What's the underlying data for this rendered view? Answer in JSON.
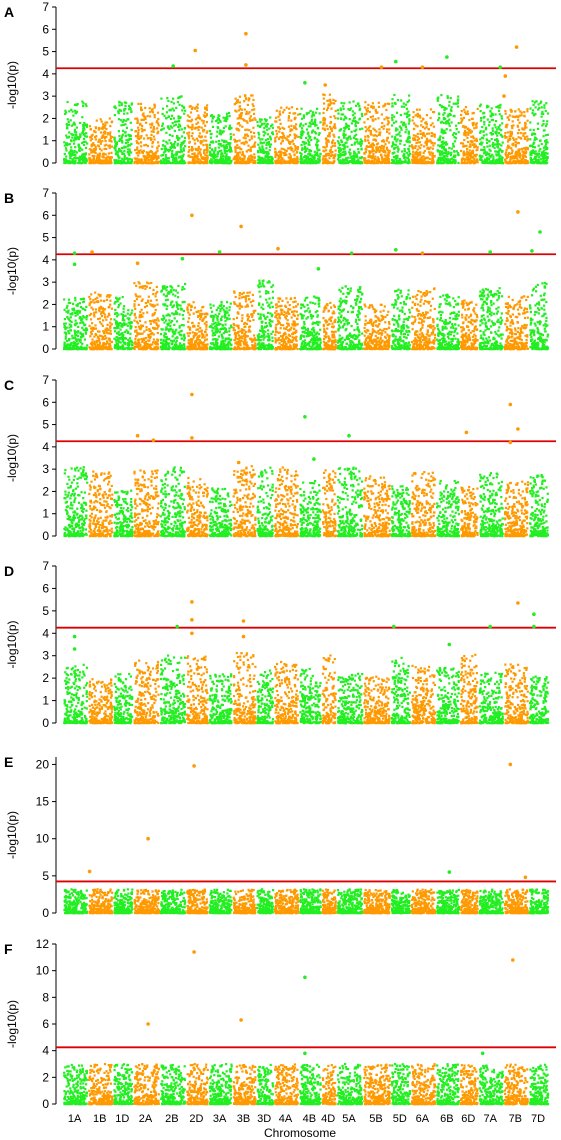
{
  "chart_data": {
    "type": "scatter",
    "subtype": "manhattan",
    "xlabel": "Chromosome",
    "chromosomes": [
      "1A",
      "1B",
      "1D",
      "2A",
      "2B",
      "2D",
      "3A",
      "3B",
      "3D",
      "4A",
      "4B",
      "4D",
      "5A",
      "5B",
      "5D",
      "6A",
      "6B",
      "6D",
      "7A",
      "7B",
      "7D"
    ],
    "colors": {
      "odd": "#22ee22",
      "even": "#ff9900",
      "threshold": "#dd0000"
    },
    "threshold": 4.25,
    "grid": false,
    "panels": [
      {
        "label": "A",
        "ylabel": "-log10(p)",
        "ylim": [
          0,
          7
        ],
        "yticks": [
          0,
          1,
          2,
          3,
          4,
          5,
          6,
          7
        ],
        "series": [
          {
            "values": []
          }
        ],
        "peaks": [
          {
            "chr": "2B",
            "pos": 0.55,
            "y": 4.35
          },
          {
            "chr": "2D",
            "pos": 0.45,
            "y": 5.05
          },
          {
            "chr": "3B",
            "pos": 0.6,
            "y": 5.8
          },
          {
            "chr": "3B",
            "pos": 0.6,
            "y": 4.4
          },
          {
            "chr": "4B",
            "pos": 0.3,
            "y": 3.6
          },
          {
            "chr": "4D",
            "pos": 0.3,
            "y": 3.5
          },
          {
            "chr": "5B",
            "pos": 0.7,
            "y": 4.3
          },
          {
            "chr": "5D",
            "pos": 0.3,
            "y": 4.55
          },
          {
            "chr": "6A",
            "pos": 0.5,
            "y": 4.3
          },
          {
            "chr": "6B",
            "pos": 0.5,
            "y": 4.75
          },
          {
            "chr": "7B",
            "pos": 0.55,
            "y": 5.2
          },
          {
            "chr": "7A",
            "pos": 0.9,
            "y": 4.3
          },
          {
            "chr": "7B",
            "pos": 0.1,
            "y": 3.9
          },
          {
            "chr": "7B",
            "pos": 0.05,
            "y": 3.0
          }
        ]
      },
      {
        "label": "B",
        "ylabel": "-log10(p)",
        "ylim": [
          0,
          7
        ],
        "yticks": [
          0,
          1,
          2,
          3,
          4,
          5,
          6,
          7
        ],
        "series": [
          {
            "values": []
          }
        ],
        "peaks": [
          {
            "chr": "1A",
            "pos": 0.5,
            "y": 4.3
          },
          {
            "chr": "1A",
            "pos": 0.5,
            "y": 3.8
          },
          {
            "chr": "1B",
            "pos": 0.2,
            "y": 4.35
          },
          {
            "chr": "2A",
            "pos": 0.2,
            "y": 3.85
          },
          {
            "chr": "2B",
            "pos": 0.9,
            "y": 4.05
          },
          {
            "chr": "2D",
            "pos": 0.3,
            "y": 6.0
          },
          {
            "chr": "3A",
            "pos": 0.5,
            "y": 4.35
          },
          {
            "chr": "3B",
            "pos": 0.4,
            "y": 5.5
          },
          {
            "chr": "4A",
            "pos": 0.2,
            "y": 4.5
          },
          {
            "chr": "4B",
            "pos": 0.9,
            "y": 3.6
          },
          {
            "chr": "5A",
            "pos": 0.6,
            "y": 4.3
          },
          {
            "chr": "5D",
            "pos": 0.3,
            "y": 4.45
          },
          {
            "chr": "6A",
            "pos": 0.5,
            "y": 4.3
          },
          {
            "chr": "7A",
            "pos": 0.5,
            "y": 4.35
          },
          {
            "chr": "7B",
            "pos": 0.6,
            "y": 6.15
          },
          {
            "chr": "7D",
            "pos": 0.2,
            "y": 4.4
          },
          {
            "chr": "7D",
            "pos": 0.6,
            "y": 5.25
          }
        ]
      },
      {
        "label": "C",
        "ylabel": "-log10(p)",
        "ylim": [
          0,
          7
        ],
        "yticks": [
          0,
          1,
          2,
          3,
          4,
          5,
          6,
          7
        ],
        "series": [
          {
            "values": []
          }
        ],
        "peaks": [
          {
            "chr": "2A",
            "pos": 0.2,
            "y": 4.5
          },
          {
            "chr": "2A",
            "pos": 0.8,
            "y": 4.3
          },
          {
            "chr": "2D",
            "pos": 0.3,
            "y": 6.35
          },
          {
            "chr": "2D",
            "pos": 0.3,
            "y": 4.4
          },
          {
            "chr": "4B",
            "pos": 0.3,
            "y": 5.35
          },
          {
            "chr": "4B",
            "pos": 0.7,
            "y": 3.45
          },
          {
            "chr": "5A",
            "pos": 0.5,
            "y": 4.5
          },
          {
            "chr": "6D",
            "pos": 0.4,
            "y": 4.65
          },
          {
            "chr": "7B",
            "pos": 0.3,
            "y": 5.9
          },
          {
            "chr": "7B",
            "pos": 0.6,
            "y": 4.8
          },
          {
            "chr": "7B",
            "pos": 0.3,
            "y": 4.2
          },
          {
            "chr": "3B",
            "pos": 0.3,
            "y": 3.3
          }
        ]
      },
      {
        "label": "D",
        "ylabel": "-log10(p)",
        "ylim": [
          0,
          7
        ],
        "yticks": [
          0,
          1,
          2,
          3,
          4,
          5,
          6,
          7
        ],
        "series": [
          {
            "values": []
          }
        ],
        "peaks": [
          {
            "chr": "1A",
            "pos": 0.5,
            "y": 3.85
          },
          {
            "chr": "1A",
            "pos": 0.5,
            "y": 3.3
          },
          {
            "chr": "2B",
            "pos": 0.7,
            "y": 4.3
          },
          {
            "chr": "2D",
            "pos": 0.3,
            "y": 5.4
          },
          {
            "chr": "2D",
            "pos": 0.3,
            "y": 4.6
          },
          {
            "chr": "2D",
            "pos": 0.3,
            "y": 4.0
          },
          {
            "chr": "3B",
            "pos": 0.5,
            "y": 4.55
          },
          {
            "chr": "3B",
            "pos": 0.5,
            "y": 3.85
          },
          {
            "chr": "5D",
            "pos": 0.2,
            "y": 4.3
          },
          {
            "chr": "6B",
            "pos": 0.6,
            "y": 3.5
          },
          {
            "chr": "7A",
            "pos": 0.5,
            "y": 4.3
          },
          {
            "chr": "7B",
            "pos": 0.6,
            "y": 5.35
          },
          {
            "chr": "7D",
            "pos": 0.3,
            "y": 4.85
          },
          {
            "chr": "7D",
            "pos": 0.3,
            "y": 4.3
          }
        ]
      },
      {
        "label": "E",
        "ylabel": "-log10(p)",
        "ylim": [
          0,
          21
        ],
        "yticks": [
          0,
          5,
          10,
          15,
          20
        ],
        "series": [
          {
            "values": []
          }
        ],
        "peaks": [
          {
            "chr": "1B",
            "pos": 0.1,
            "y": 5.6
          },
          {
            "chr": "2A",
            "pos": 0.6,
            "y": 10.0
          },
          {
            "chr": "2D",
            "pos": 0.4,
            "y": 19.8
          },
          {
            "chr": "6B",
            "pos": 0.6,
            "y": 5.5
          },
          {
            "chr": "7B",
            "pos": 0.3,
            "y": 20.0
          },
          {
            "chr": "7B",
            "pos": 0.9,
            "y": 4.8
          }
        ]
      },
      {
        "label": "F",
        "ylabel": "-log10(p)",
        "ylim": [
          0,
          12
        ],
        "yticks": [
          0,
          2,
          4,
          6,
          8,
          10,
          12
        ],
        "series": [
          {
            "values": []
          }
        ],
        "peaks": [
          {
            "chr": "2A",
            "pos": 0.6,
            "y": 6.0
          },
          {
            "chr": "2D",
            "pos": 0.4,
            "y": 11.4
          },
          {
            "chr": "3B",
            "pos": 0.4,
            "y": 6.3
          },
          {
            "chr": "4B",
            "pos": 0.3,
            "y": 9.5
          },
          {
            "chr": "4B",
            "pos": 0.3,
            "y": 3.8
          },
          {
            "chr": "7B",
            "pos": 0.4,
            "y": 10.8
          },
          {
            "chr": "7A",
            "pos": 0.2,
            "y": 3.8
          }
        ]
      }
    ]
  }
}
